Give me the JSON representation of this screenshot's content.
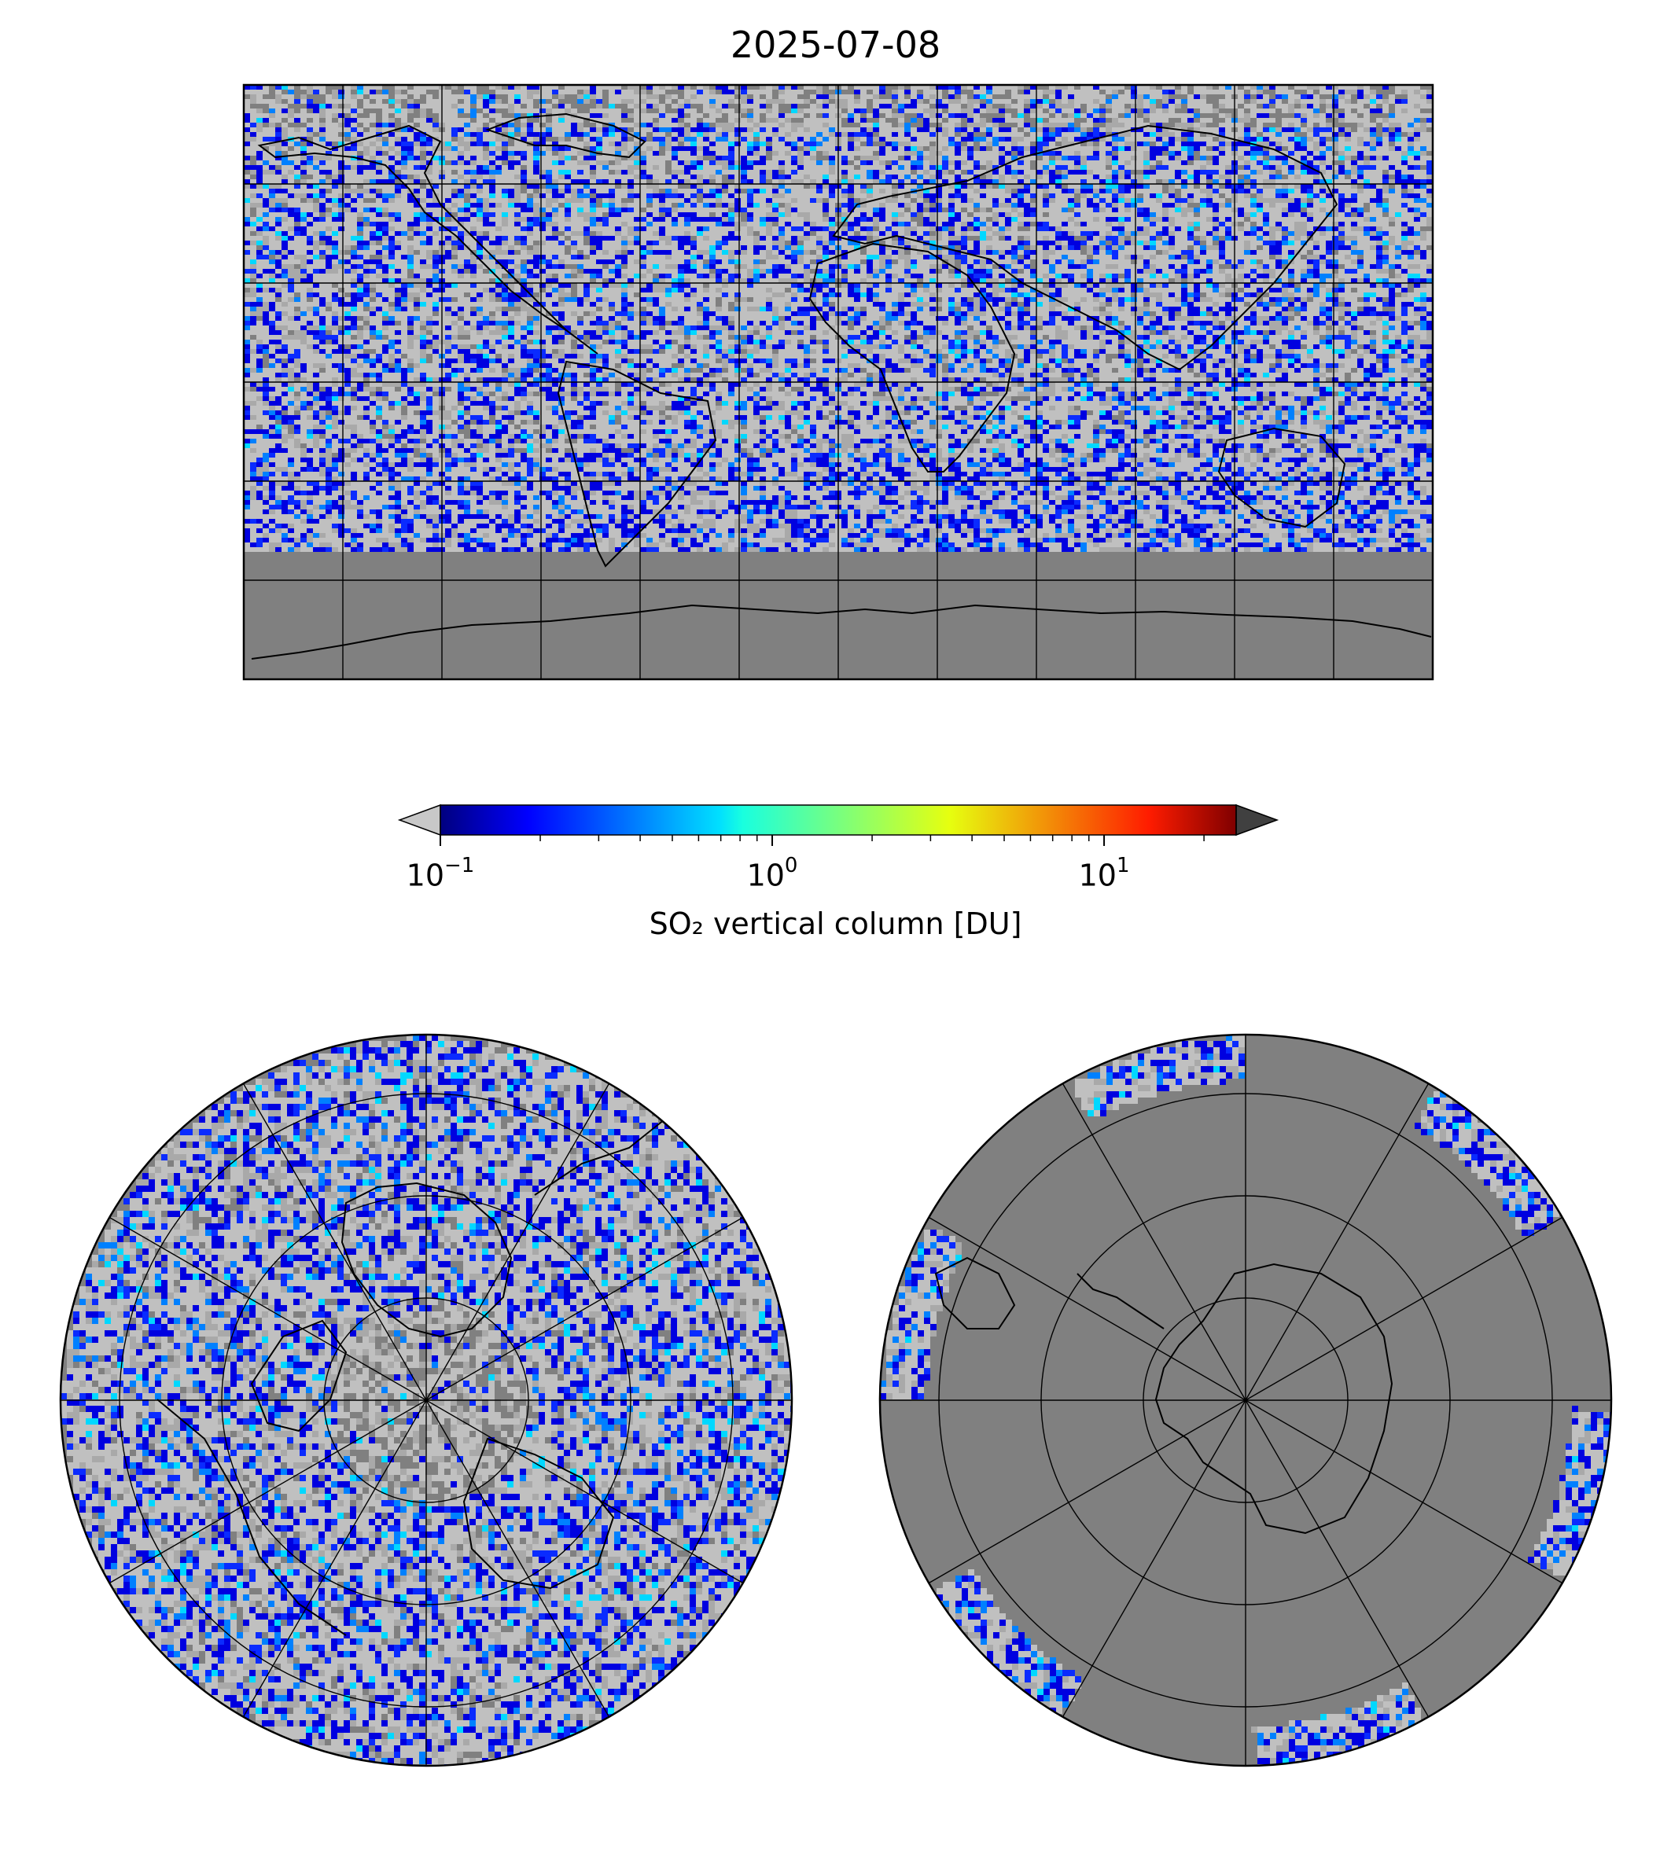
{
  "title": "2025-07-08",
  "colorbar": {
    "label": "SO₂ vertical column [DU]",
    "scale": "log",
    "range": [
      0.1,
      25
    ],
    "colormap": "jet",
    "extend": "both",
    "under_color": "#c8c8c8",
    "over_color": "#404040",
    "ticks": [
      {
        "base": "10",
        "exp": "−1",
        "value": 0.1
      },
      {
        "base": "10",
        "exp": "0",
        "value": 1
      },
      {
        "base": "10",
        "exp": "1",
        "value": 10
      }
    ]
  },
  "maps": [
    {
      "name": "global",
      "projection": "plate-carree",
      "background": "#808080",
      "gridlines": true
    },
    {
      "name": "north-polar",
      "projection": "north-polar-stereographic",
      "background": "#808080",
      "gridlines": true
    },
    {
      "name": "south-polar",
      "projection": "south-polar-stereographic",
      "background": "#808080",
      "gridlines": true
    }
  ],
  "colors": {
    "no_data": "#808080",
    "below_threshold": "#c0c0c0",
    "coastline": "#000000"
  }
}
